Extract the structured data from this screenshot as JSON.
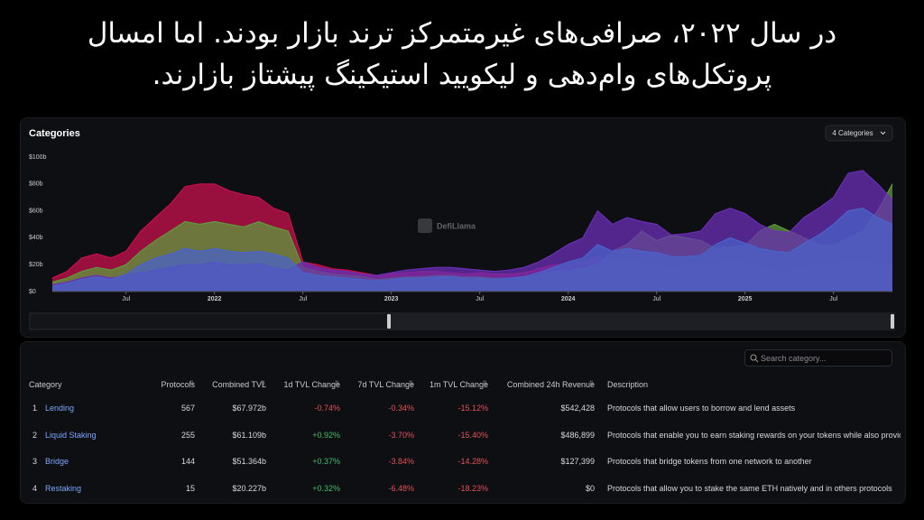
{
  "heading": {
    "lines": [
      "در سال ۲۰۲۲، صرافی‌های غیرمتمرکز ترند بازار بودند. اما امسال",
      "پروتکل‌های وام‌دهی و لیکویید استیکینگ پیشتاز بازارند."
    ]
  },
  "chart_data": {
    "type": "area",
    "title": "Categories",
    "selector": "4 Categories",
    "watermark": "DefiLlama",
    "categories": [
      null,
      null,
      null,
      null,
      null,
      "Jul",
      null,
      null,
      null,
      null,
      null,
      "2022",
      null,
      null,
      null,
      null,
      null,
      "Jul",
      null,
      null,
      null,
      null,
      null,
      "2023",
      null,
      null,
      null,
      null,
      null,
      "Jul",
      null,
      null,
      null,
      null,
      null,
      "2024",
      null,
      null,
      null,
      null,
      null,
      "Jul",
      null,
      null,
      null,
      null,
      null,
      "2025",
      null,
      null,
      null,
      null,
      null,
      "Jul",
      null,
      null,
      null,
      null
    ],
    "series": [
      {
        "color": "#c8104e",
        "values": [
          10,
          15,
          25,
          28,
          25,
          30,
          45,
          55,
          65,
          78,
          80,
          80,
          75,
          72,
          70,
          62,
          58,
          22,
          20,
          17,
          16,
          14,
          12,
          13,
          14,
          15,
          15,
          14,
          13,
          14,
          13,
          13,
          14,
          17,
          20,
          20,
          22,
          26,
          22,
          24,
          22,
          21,
          18,
          19,
          19,
          22,
          24,
          22,
          19,
          17,
          16,
          18,
          20,
          22,
          24,
          24,
          22,
          20
        ]
      },
      {
        "color": "#5f9a3c",
        "values": [
          7,
          10,
          15,
          18,
          16,
          20,
          30,
          38,
          45,
          52,
          50,
          52,
          50,
          48,
          52,
          48,
          45,
          18,
          15,
          13,
          12,
          11,
          9,
          10,
          11,
          11,
          12,
          12,
          11,
          11,
          10,
          10,
          10,
          12,
          15,
          16,
          17,
          20,
          30,
          35,
          45,
          38,
          42,
          40,
          38,
          32,
          33,
          34,
          45,
          50,
          45,
          40,
          35,
          34,
          40,
          45,
          60,
          80
        ]
      },
      {
        "color": "#6a2fb5",
        "values": [
          5,
          7,
          10,
          12,
          10,
          12,
          14,
          16,
          18,
          20,
          20,
          22,
          20,
          20,
          21,
          18,
          16,
          22,
          18,
          16,
          15,
          13,
          12,
          14,
          16,
          17,
          18,
          18,
          17,
          16,
          15,
          16,
          18,
          22,
          28,
          35,
          40,
          60,
          50,
          55,
          52,
          50,
          42,
          43,
          45,
          58,
          62,
          58,
          50,
          45,
          44,
          55,
          62,
          70,
          88,
          90,
          80,
          68
        ]
      },
      {
        "color": "#4a63c9",
        "values": [
          4,
          6,
          9,
          11,
          9,
          13,
          20,
          25,
          28,
          32,
          30,
          32,
          30,
          29,
          30,
          28,
          25,
          14,
          12,
          11,
          10,
          9,
          8,
          9,
          10,
          10,
          11,
          11,
          10,
          10,
          9,
          10,
          11,
          14,
          18,
          22,
          25,
          35,
          30,
          32,
          30,
          29,
          26,
          26,
          27,
          35,
          40,
          36,
          32,
          30,
          29,
          36,
          42,
          50,
          60,
          62,
          55,
          50
        ]
      }
    ],
    "ylim": [
      0,
      100
    ],
    "yticks": [
      {
        "value": 0,
        "label": "$0"
      },
      {
        "value": 20,
        "label": "$20b"
      },
      {
        "value": 40,
        "label": "$40b"
      },
      {
        "value": 60,
        "label": "$60b"
      },
      {
        "value": 80,
        "label": "$80b"
      },
      {
        "value": 100,
        "label": "$100b"
      }
    ],
    "grid": false
  },
  "table": {
    "search": "Search category...",
    "columns": [
      "Category",
      "Protocols",
      "Combined TVL",
      "1d TVL Change",
      "7d TVL Change",
      "1m TVL Change",
      "Combined 24h Revenue",
      "Description"
    ],
    "rows": [
      [
        1,
        "Lending",
        "567",
        "$67.972b",
        "-0.74%",
        "-0.34%",
        "-15.12%",
        "$542,428",
        "Protocols that allow users to borrow and lend assets"
      ],
      [
        2,
        "Liquid Staking",
        "255",
        "$61.109b",
        "+0.92%",
        "-3.70%",
        "-15.40%",
        "$486,899",
        "Protocols that enable you to earn staking rewards on your tokens while also providi"
      ],
      [
        3,
        "Bridge",
        "144",
        "$51.364b",
        "+0.37%",
        "-3.84%",
        "-14.28%",
        "$127,399",
        "Protocols that bridge tokens from one network to another"
      ],
      [
        4,
        "Restaking",
        "15",
        "$20.227b",
        "+0.32%",
        "-6.48%",
        "-18.23%",
        "$0",
        "Protocols that allow you to stake the same ETH natively and in others protocols"
      ]
    ]
  }
}
